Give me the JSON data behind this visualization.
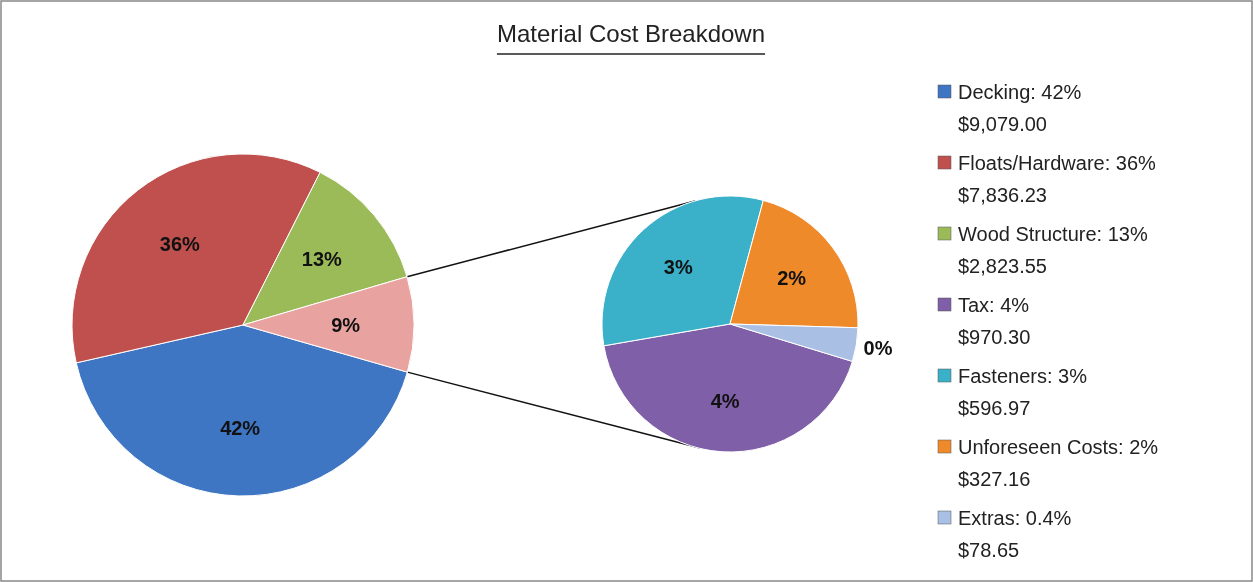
{
  "chart_data": [
    {
      "type": "pie",
      "title": "Material Cost Breakdown",
      "categories": [
        "Decking: 42%\n$9,079.00",
        "Floats/Hardware: 36%\n$7,836.23",
        "Wood Structure: 13%\n$2,823.55",
        null
      ],
      "values": [
        42,
        36,
        13,
        9
      ],
      "colors": [
        "#3f76c4",
        "#c0504d",
        "#9bbb59",
        "#e8a2a0"
      ],
      "value_labels": [
        "42%",
        "36%",
        "13%",
        "9%"
      ],
      "legend": "right"
    },
    {
      "type": "pie",
      "categories": [
        "Tax: 4%\n$970.30",
        "Fasteners: 3%\n$596.97",
        "Unforeseen Costs: 2%\n$327.16",
        "Extras: 0.4%\n$78.65"
      ],
      "values": [
        4,
        3,
        2,
        0.4
      ],
      "colors": [
        "#7f5fa8",
        "#3bb0c9",
        "#ef8a2a",
        "#a9bfe3"
      ],
      "value_labels": [
        "4%",
        "3%",
        "2%",
        "0%"
      ],
      "legend": "right"
    }
  ]
}
